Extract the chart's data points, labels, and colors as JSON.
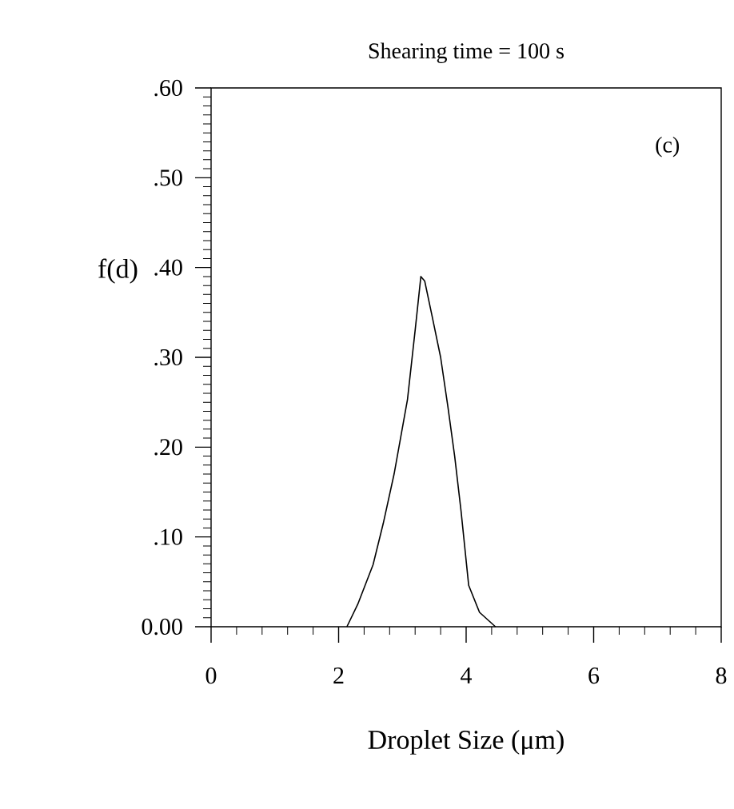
{
  "chart_data": {
    "type": "line",
    "title": "Shearing time = 100 s",
    "xlabel": "Droplet Size (μm)",
    "ylabel": "f(d)",
    "annotations": [
      "(c)"
    ],
    "x": [
      2.13,
      2.3,
      2.54,
      2.7,
      2.87,
      3.08,
      3.2,
      3.29,
      3.35,
      3.46,
      3.6,
      3.71,
      3.82,
      3.92,
      4.04,
      4.21,
      4.46
    ],
    "series": [
      {
        "color": "#000000",
        "values": [
          0,
          0.025,
          0.069,
          0.115,
          0.17,
          0.253,
          0.33,
          0.39,
          0.385,
          0.348,
          0.3,
          0.247,
          0.19,
          0.129,
          0.046,
          0.016,
          0
        ]
      }
    ],
    "xlim": [
      0,
      8
    ],
    "xticks": [
      0,
      2,
      4,
      6,
      8
    ],
    "ylim": [
      0,
      0.6
    ],
    "yticks": [
      {
        "value": 0,
        "label": "0.00"
      },
      {
        "value": 0.1,
        "label": ".10"
      },
      {
        "value": 0.2,
        "label": ".20"
      },
      {
        "value": 0.3,
        "label": ".30"
      },
      {
        "value": 0.4,
        "label": ".40"
      },
      {
        "value": 0.5,
        "label": ".50"
      },
      {
        "value": 0.6,
        "label": ".60"
      }
    ],
    "grid": false,
    "marker": "none",
    "line_style": "solid"
  }
}
